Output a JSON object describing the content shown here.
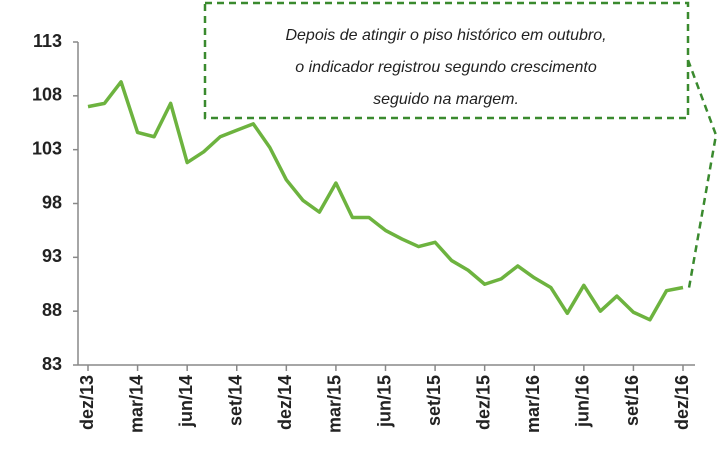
{
  "chart_data": {
    "type": "line",
    "annotation": [
      "Depois de atingir o piso histórico em outubro,",
      "o indicador registrou segundo crescimento",
      "seguido na margem."
    ],
    "categories": [
      "dez/13",
      null,
      null,
      "mar/14",
      null,
      null,
      "jun/14",
      null,
      null,
      "set/14",
      null,
      null,
      "dez/14",
      null,
      null,
      "mar/15",
      null,
      null,
      "jun/15",
      null,
      null,
      "set/15",
      null,
      null,
      "dez/15",
      null,
      null,
      "mar/16",
      null,
      null,
      "jun/16",
      null,
      null,
      "set/16",
      null,
      null,
      "dez/16"
    ],
    "values": [
      107.0,
      107.3,
      109.3,
      104.6,
      104.2,
      107.3,
      101.8,
      102.8,
      104.2,
      104.8,
      105.4,
      103.2,
      100.2,
      98.3,
      97.2,
      99.9,
      96.7,
      96.7,
      95.5,
      94.7,
      94.0,
      94.4,
      92.7,
      91.8,
      90.5,
      91.0,
      92.2,
      91.1,
      90.2,
      87.8,
      90.4,
      88.0,
      89.4,
      87.9,
      87.2,
      89.9,
      90.2
    ],
    "color": "#6db33f",
    "ylim": [
      83,
      113
    ],
    "yticks": [
      83,
      88,
      93,
      98,
      103,
      108,
      113
    ]
  }
}
